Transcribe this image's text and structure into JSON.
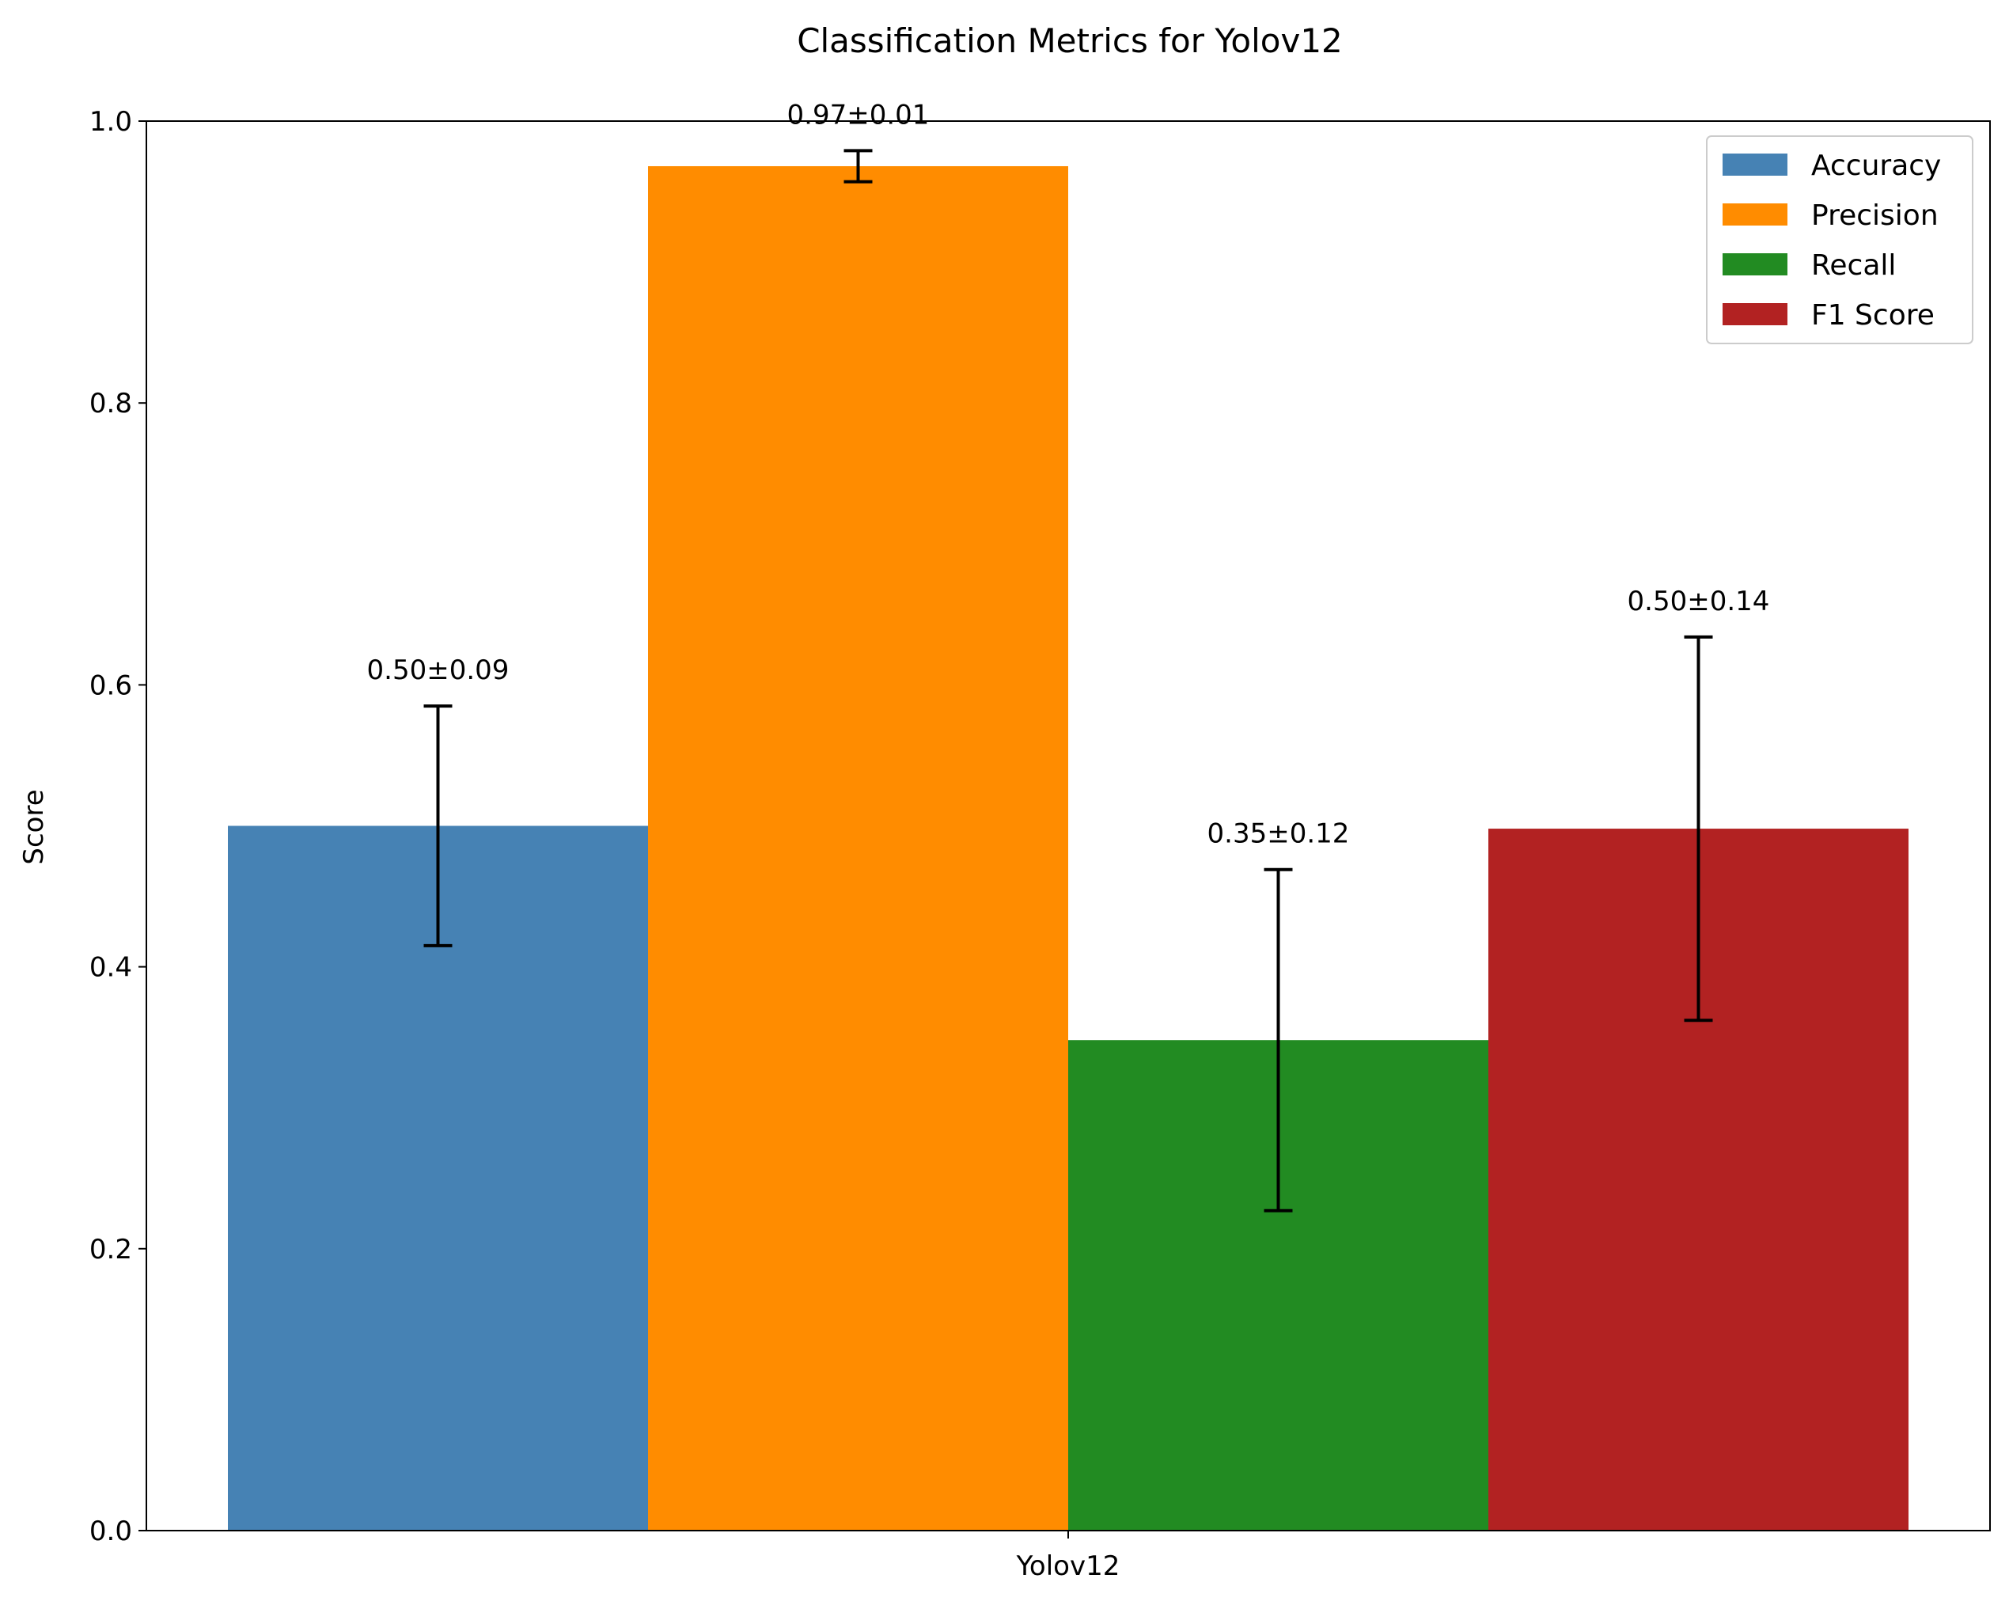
{
  "chart_data": {
    "type": "bar",
    "title": "Classification Metrics for Yolov12",
    "xlabel": "",
    "ylabel": "Score",
    "categories": [
      "Yolov12"
    ],
    "ylim": [
      0,
      1.0
    ],
    "yticks": [
      0.0,
      0.2,
      0.4,
      0.6,
      0.8,
      1.0
    ],
    "ytick_labels": [
      "0.0",
      "0.2",
      "0.4",
      "0.6",
      "0.8",
      "1.0"
    ],
    "grid": false,
    "legend_position": "top-right",
    "series": [
      {
        "name": "Accuracy",
        "value": 0.5,
        "error": 0.085,
        "color": "#4682b4",
        "label": "0.50±0.09"
      },
      {
        "name": "Precision",
        "value": 0.968,
        "error": 0.011,
        "color": "#ff8c00",
        "label": "0.97±0.01"
      },
      {
        "name": "Recall",
        "value": 0.348,
        "error": 0.121,
        "color": "#228b22",
        "label": "0.35±0.12"
      },
      {
        "name": "F1 Score",
        "value": 0.498,
        "error": 0.136,
        "color": "#b22222",
        "label": "0.50±0.14"
      }
    ]
  }
}
